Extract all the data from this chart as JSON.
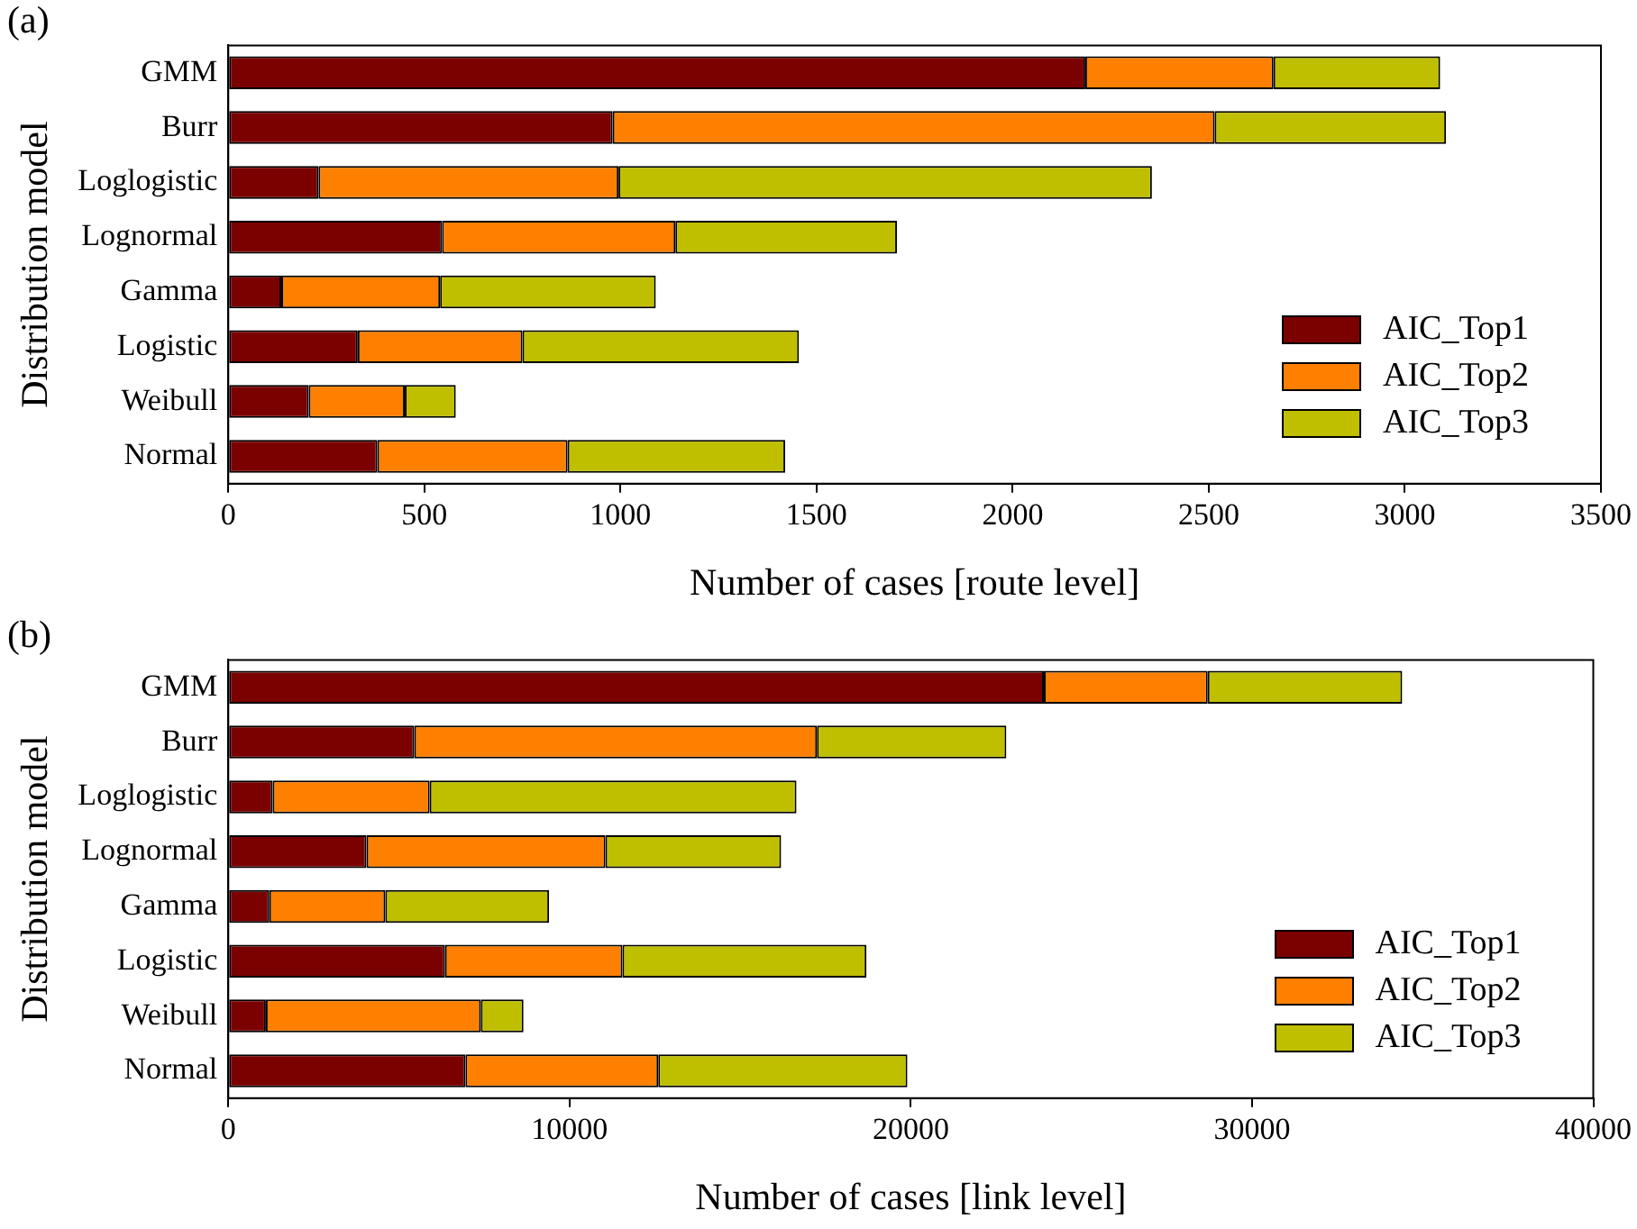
{
  "chart_data": [
    {
      "type": "bar",
      "orientation": "horizontal",
      "stacked": true,
      "title": "(a)",
      "xlabel": "Number of cases [route level]",
      "ylabel": "Distribution model",
      "categories": [
        "GMM",
        "Burr",
        "Loglogistic",
        "Lognormal",
        "Gamma",
        "Logistic",
        "Weibull",
        "Normal"
      ],
      "series": [
        {
          "name": "AIC_Top1",
          "color": "#7b0000",
          "values": [
            2185,
            980,
            230,
            545,
            135,
            330,
            205,
            380
          ]
        },
        {
          "name": "AIC_Top2",
          "color": "#ff8000",
          "values": [
            480,
            1535,
            765,
            595,
            405,
            420,
            245,
            485
          ]
        },
        {
          "name": "AIC_Top3",
          "color": "#bfbf00",
          "values": [
            425,
            590,
            1360,
            565,
            550,
            705,
            130,
            555
          ]
        }
      ],
      "xlim": [
        0,
        3500
      ],
      "xticks": [
        0,
        500,
        1000,
        1500,
        2000,
        2500,
        3000,
        3500
      ],
      "grid": false,
      "legend": "bottom right"
    },
    {
      "type": "bar",
      "orientation": "horizontal",
      "stacked": true,
      "title": "(b)",
      "xlabel": "Number of cases [link level]",
      "ylabel": "Distribution model",
      "categories": [
        "GMM",
        "Burr",
        "Loglogistic",
        "Lognormal",
        "Gamma",
        "Logistic",
        "Weibull",
        "Normal"
      ],
      "series": [
        {
          "name": "AIC_Top1",
          "color": "#7b0000",
          "values": [
            23900,
            5450,
            1300,
            4050,
            1200,
            6350,
            1100,
            6950
          ]
        },
        {
          "name": "AIC_Top2",
          "color": "#ff8000",
          "values": [
            4800,
            11800,
            4600,
            7000,
            3400,
            5200,
            6300,
            5650
          ]
        },
        {
          "name": "AIC_Top3",
          "color": "#bfbf00",
          "values": [
            5700,
            5550,
            10750,
            5150,
            4800,
            7150,
            1250,
            7300
          ]
        }
      ],
      "xlim": [
        0,
        40000
      ],
      "xticks": [
        0,
        10000,
        20000,
        30000,
        40000
      ],
      "grid": false,
      "legend": "bottom right"
    }
  ]
}
